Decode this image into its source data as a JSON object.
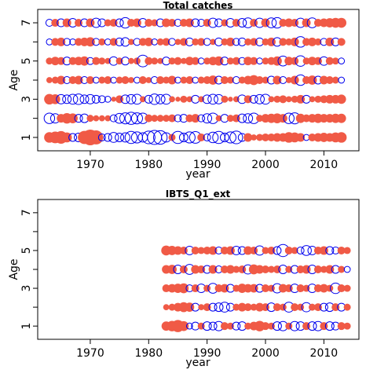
{
  "colors": {
    "positive": "#f05a46",
    "negative": "#0000ee",
    "axis": "#000000"
  },
  "chart_data": [
    {
      "type": "scatter",
      "subtype": "bubble",
      "title": "Total catches",
      "xlabel": "year",
      "ylabel": "Age",
      "xlim": [
        1961,
        2016
      ],
      "ylim": [
        0.3,
        7.7
      ],
      "xticks": [
        1970,
        1980,
        1990,
        2000,
        2010
      ],
      "yticks": [
        1,
        2,
        3,
        4,
        5,
        6,
        7
      ],
      "yticklabels": [
        "1",
        "",
        "3",
        "",
        "5",
        "",
        "7"
      ],
      "years": [
        1963,
        2013
      ],
      "ages": [
        1,
        2,
        3,
        4,
        5,
        6,
        7
      ],
      "encoding": "filled = positive residual, open = negative residual; area proportional to magnitude",
      "residuals": {
        "1": [
          0.9,
          1.1,
          1.3,
          0.8,
          -0.5,
          -0.6,
          1.4,
          2.0,
          1.6,
          -0.4,
          -0.5,
          -0.8,
          -0.6,
          -0.7,
          -1.2,
          -1.0,
          -0.7,
          -1.3,
          -1.6,
          -1.5,
          -0.7,
          0.4,
          -1.2,
          -0.6,
          -1.0,
          -1.1,
          0.5,
          -0.4,
          -0.9,
          -1.2,
          -0.6,
          -1.0,
          -1.3,
          -0.5,
          0.6,
          0.3,
          0.4,
          0.5,
          0.5,
          0.6,
          0.6,
          0.9,
          0.8,
          0.6,
          -0.3,
          0.5,
          0.6,
          0.7,
          0.6,
          0.8,
          0.9
        ],
        "2": [
          -0.9,
          -0.7,
          0.6,
          0.9,
          0.8,
          -0.5,
          -0.6,
          0.4,
          0.3,
          0.3,
          0.3,
          -0.4,
          -0.8,
          -1.0,
          -1.2,
          -1.0,
          -0.9,
          0.5,
          0.4,
          0.4,
          0.4,
          0.5,
          -0.4,
          -0.5,
          0.5,
          0.6,
          -0.4,
          -0.7,
          -0.9,
          0.3,
          -0.5,
          0.4,
          0.5,
          -0.6,
          -0.7,
          -0.9,
          0.4,
          0.6,
          0.7,
          0.8,
          0.6,
          -0.9,
          -1.0,
          0.7,
          0.5,
          0.6,
          0.7,
          0.6,
          0.6,
          0.7,
          0.7
        ],
        "3": [
          0.9,
          0.8,
          -0.7,
          -0.6,
          -0.8,
          -0.9,
          -0.6,
          -0.7,
          -0.5,
          -0.4,
          -0.3,
          0.2,
          0.5,
          -0.6,
          -0.7,
          -0.8,
          0.3,
          -0.5,
          -0.9,
          -0.7,
          -0.8,
          0.3,
          0.2,
          0.4,
          0.3,
          -0.5,
          0.3,
          -0.6,
          -0.8,
          -0.7,
          0.4,
          0.2,
          0.3,
          -0.6,
          0.5,
          -0.5,
          -0.7,
          -0.8,
          0.3,
          0.4,
          0.5,
          0.3,
          0.4,
          0.6,
          -0.5,
          0.3,
          0.4,
          0.5,
          0.6,
          0.6,
          0.7
        ],
        "4": [
          0.3,
          0.4,
          0.6,
          -0.4,
          0.5,
          0.6,
          -0.4,
          0.5,
          -0.3,
          0.4,
          0.5,
          -0.3,
          0.4,
          0.5,
          0.3,
          -0.3,
          0.5,
          0.3,
          -0.4,
          0.5,
          0.4,
          0.6,
          -0.3,
          0.4,
          0.5,
          -0.3,
          0.4,
          0.5,
          0.7,
          -0.5,
          0.5,
          0.4,
          -0.4,
          0.4,
          0.6,
          0.8,
          0.5,
          0.4,
          -0.5,
          0.6,
          -0.4,
          0.3,
          0.6,
          -0.9,
          0.5,
          0.7,
          -0.5,
          0.6,
          0.5,
          0.4,
          -0.3
        ],
        "5": [
          0.4,
          0.6,
          0.5,
          -0.5,
          0.5,
          0.6,
          0.7,
          -0.4,
          0.5,
          0.4,
          0.3,
          -0.6,
          0.4,
          -0.5,
          0.3,
          0.4,
          -1.1,
          0.5,
          0.4,
          0.3,
          -0.5,
          0.4,
          0.5,
          0.3,
          0.6,
          0.5,
          -0.3,
          0.4,
          0.6,
          0.7,
          -0.5,
          0.4,
          0.5,
          -0.4,
          0.6,
          0.5,
          -0.3,
          0.4,
          0.5,
          0.7,
          -0.8,
          0.6,
          0.5,
          -0.9,
          0.4,
          0.6,
          0.5,
          -0.6,
          0.5,
          0.4,
          -0.3
        ],
        "6": [
          -0.3,
          0.5,
          0.6,
          -0.4,
          -0.3,
          0.5,
          0.6,
          0.7,
          -0.4,
          0.4,
          -0.3,
          0.5,
          -0.5,
          -0.6,
          0.3,
          -0.4,
          0.5,
          0.6,
          -0.3,
          0.4,
          0.5,
          -0.4,
          0.3,
          0.5,
          -0.5,
          0.4,
          0.5,
          -0.4,
          0.3,
          -0.5,
          0.4,
          0.6,
          -0.4,
          -0.5,
          0.4,
          0.5,
          -0.5,
          0.4,
          0.6,
          -0.6,
          0.5,
          0.4,
          0.6,
          -0.9,
          0.5,
          0.6,
          0.4,
          -0.4,
          0.6,
          -0.5,
          0.5
        ],
        "7": [
          -0.4,
          0.5,
          -0.5,
          0.6,
          -0.6,
          0.5,
          -0.5,
          0.6,
          -0.7,
          -0.5,
          0.4,
          0.5,
          -0.5,
          -0.9,
          0.5,
          0.6,
          -0.6,
          0.5,
          0.4,
          -0.5,
          0.6,
          0.5,
          -0.4,
          0.5,
          0.6,
          -0.5,
          -0.4,
          0.5,
          -0.7,
          -0.5,
          0.4,
          -0.6,
          0.5,
          -0.6,
          -0.8,
          0.5,
          -0.7,
          0.6,
          -0.8,
          -0.9,
          0.5,
          0.6,
          0.5,
          -0.7,
          0.6,
          -0.8,
          0.5,
          0.6,
          0.7,
          0.8,
          0.8
        ]
      }
    },
    {
      "type": "scatter",
      "subtype": "bubble",
      "title": "IBTS_Q1_ext",
      "xlabel": "year",
      "ylabel": "Age",
      "xlim": [
        1961,
        2016
      ],
      "ylim": [
        0.3,
        7.7
      ],
      "xticks": [
        1970,
        1980,
        1990,
        2000,
        2010
      ],
      "yticks": [
        1,
        2,
        3,
        4,
        5,
        6,
        7
      ],
      "yticklabels": [
        "1",
        "",
        "3",
        "",
        "5",
        "",
        "7"
      ],
      "years": [
        1983,
        2014
      ],
      "ages": [
        1,
        2,
        3,
        4,
        5
      ],
      "encoding": "filled = positive residual, open = negative residual; area proportional to magnitude",
      "residuals": {
        "1": [
          0.7,
          0.9,
          1.2,
          0.8,
          -0.3,
          -0.5,
          0.4,
          -0.6,
          -0.5,
          -0.7,
          0.5,
          0.4,
          -0.5,
          -0.6,
          0.4,
          0.6,
          0.9,
          0.5,
          0.4,
          -0.6,
          -0.7,
          0.4,
          -0.7,
          -0.6,
          0.5,
          -0.6,
          -0.7,
          0.5,
          -0.6,
          -0.5,
          0.5,
          0.4
        ],
        "2": [
          0.3,
          0.4,
          0.6,
          0.8,
          0.7,
          -0.5,
          0.3,
          0.5,
          -0.5,
          -0.6,
          -0.8,
          -0.5,
          0.4,
          0.6,
          0.5,
          0.4,
          0.6,
          0.5,
          -0.6,
          0.5,
          0.4,
          -0.8,
          0.5,
          0.4,
          -0.7,
          0.4,
          0.5,
          -0.5,
          -0.6,
          0.5,
          -0.5,
          0.4
        ],
        "3": [
          0.5,
          0.6,
          0.7,
          0.8,
          -0.4,
          0.5,
          -0.6,
          0.4,
          -0.8,
          0.5,
          0.6,
          -0.5,
          0.4,
          0.7,
          0.6,
          0.6,
          -0.5,
          0.5,
          0.4,
          -0.7,
          0.6,
          0.5,
          -0.6,
          0.5,
          0.4,
          -0.6,
          0.5,
          0.6,
          0.4,
          -0.9,
          0.5,
          0.4
        ],
        "4": [
          0.6,
          0.7,
          -0.6,
          0.5,
          -0.8,
          0.6,
          0.5,
          -0.5,
          0.6,
          -0.4,
          0.5,
          0.6,
          0.4,
          0.5,
          -0.7,
          0.8,
          0.6,
          0.5,
          0.4,
          0.5,
          -0.6,
          0.4,
          -0.5,
          0.5,
          0.6,
          -0.6,
          0.5,
          0.4,
          0.6,
          -0.5,
          0.4,
          -0.3
        ],
        "5": [
          0.8,
          0.7,
          0.6,
          0.5,
          -0.6,
          0.5,
          0.4,
          0.5,
          0.6,
          -0.4,
          0.5,
          0.6,
          -0.6,
          -0.5,
          0.6,
          0.5,
          -0.7,
          0.4,
          0.5,
          -0.5,
          -1.2,
          0.5,
          0.4,
          -0.4,
          -0.8,
          -0.6,
          0.5,
          0.6,
          -0.5,
          -0.4,
          0.5,
          0.4
        ]
      }
    }
  ]
}
